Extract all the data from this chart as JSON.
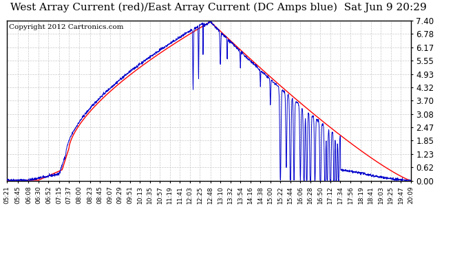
{
  "title": "West Array Current (red)/East Array Current (DC Amps blue)  Sat Jun 9 20:29",
  "copyright": "Copyright 2012 Cartronics.com",
  "yticks": [
    0.0,
    0.62,
    1.23,
    1.85,
    2.47,
    3.08,
    3.7,
    4.32,
    4.93,
    5.55,
    6.17,
    6.78,
    7.4
  ],
  "ymax": 7.4,
  "ymin": 0.0,
  "bg_color": "#ffffff",
  "grid_color": "#c8c8c8",
  "red_color": "#ff0000",
  "blue_color": "#0000cc",
  "title_fontsize": 11,
  "copyright_fontsize": 7.5,
  "xtick_labels": [
    "05:21",
    "05:45",
    "06:08",
    "06:30",
    "06:52",
    "07:15",
    "07:37",
    "08:00",
    "08:23",
    "08:45",
    "09:07",
    "09:29",
    "09:51",
    "10:13",
    "10:35",
    "10:57",
    "11:19",
    "11:41",
    "12:03",
    "12:25",
    "12:48",
    "13:10",
    "13:32",
    "13:54",
    "14:16",
    "14:38",
    "15:00",
    "15:22",
    "15:44",
    "16:06",
    "16:28",
    "16:50",
    "17:12",
    "17:34",
    "17:56",
    "18:19",
    "18:41",
    "19:03",
    "19:25",
    "19:47",
    "20:09"
  ]
}
